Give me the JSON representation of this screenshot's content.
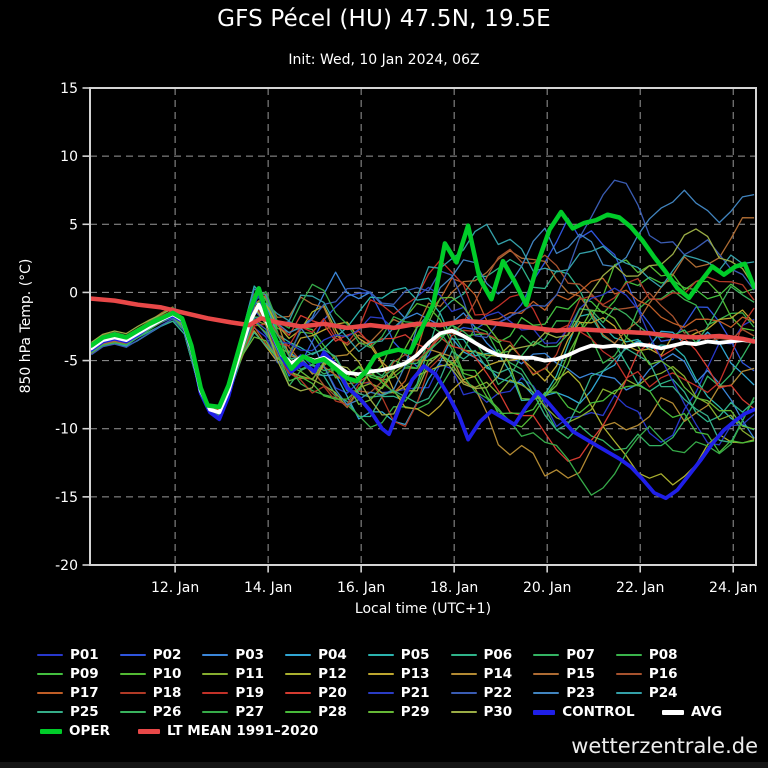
{
  "header": {
    "title": "GFS Pécel (HU) 47.5N, 19.5E",
    "subtitle": "Init: Wed, 10 Jan 2024, 06Z"
  },
  "footer": {
    "watermark": "wetterzentrale.de"
  },
  "colors": {
    "background": "#000000",
    "text": "#ffffff",
    "grid": "#999999",
    "border": "#d4d4d4",
    "oper": "#00cc29",
    "control": "#1f1fe8",
    "avg": "#ffffff",
    "ltmean": "#e84848"
  },
  "chart_data": {
    "type": "line",
    "title": "GFS Pécel (HU) 47.5N, 19.5E",
    "xlabel": "Local time (UTC+1)",
    "ylabel": "850 hPa Temp. (°C)",
    "x_range": [
      10.17,
      24.49
    ],
    "y_range": [
      -20,
      15
    ],
    "grid": "dashed",
    "x_ticks": [
      {
        "day": 12,
        "label": "12. Jan"
      },
      {
        "day": 14,
        "label": "14. Jan"
      },
      {
        "day": 16,
        "label": "16. Jan"
      },
      {
        "day": 18,
        "label": "18. Jan"
      },
      {
        "day": 20,
        "label": "20. Jan"
      },
      {
        "day": 22,
        "label": "22. Jan"
      },
      {
        "day": 24,
        "label": "24. Jan"
      }
    ],
    "y_ticks": [
      {
        "v": 15,
        "label": "15"
      },
      {
        "v": 10,
        "label": "10"
      },
      {
        "v": 5,
        "label": "5"
      },
      {
        "v": 0,
        "label": "0"
      },
      {
        "v": -5,
        "label": "-5"
      },
      {
        "v": -10,
        "label": "-10"
      },
      {
        "v": -15,
        "label": "-15"
      },
      {
        "v": -20,
        "label": "-20"
      }
    ],
    "series": [
      {
        "name": "LTMEAN",
        "label": "LT MEAN 1991–2020",
        "color": "#e84848",
        "width": 4.5,
        "points": [
          [
            10.2,
            -0.45
          ],
          [
            10.7,
            -0.6
          ],
          [
            11.2,
            -0.9
          ],
          [
            11.7,
            -1.1
          ],
          [
            12.2,
            -1.5
          ],
          [
            12.7,
            -1.9
          ],
          [
            13.2,
            -2.2
          ],
          [
            13.6,
            -2.4
          ],
          [
            13.85,
            -1.9
          ],
          [
            14.2,
            -2.2
          ],
          [
            14.7,
            -2.5
          ],
          [
            15.2,
            -2.3
          ],
          [
            15.7,
            -2.6
          ],
          [
            16.2,
            -2.4
          ],
          [
            16.7,
            -2.6
          ],
          [
            17.2,
            -2.3
          ],
          [
            17.7,
            -2.4
          ],
          [
            18.2,
            -2.1
          ],
          [
            18.7,
            -2.2
          ],
          [
            19.2,
            -2.4
          ],
          [
            19.7,
            -2.6
          ],
          [
            20.2,
            -2.8
          ],
          [
            20.7,
            -2.7
          ],
          [
            21.2,
            -2.8
          ],
          [
            21.7,
            -2.9
          ],
          [
            22.2,
            -3.0
          ],
          [
            22.7,
            -3.2
          ],
          [
            23.2,
            -3.3
          ],
          [
            23.7,
            -3.2
          ],
          [
            24.2,
            -3.4
          ],
          [
            24.45,
            -3.6
          ]
        ]
      },
      {
        "name": "CONTROL",
        "label": "CONTROL",
        "color": "#1f1fe8",
        "width": 3.8,
        "points": [
          [
            10.2,
            -4.2
          ],
          [
            10.45,
            -3.6
          ],
          [
            10.7,
            -3.4
          ],
          [
            10.95,
            -3.6
          ],
          [
            11.2,
            -3.1
          ],
          [
            11.45,
            -2.5
          ],
          [
            11.7,
            -2.0
          ],
          [
            11.95,
            -1.7
          ],
          [
            12.15,
            -2.1
          ],
          [
            12.35,
            -4.2
          ],
          [
            12.55,
            -7.4
          ],
          [
            12.75,
            -8.8
          ],
          [
            12.95,
            -9.3
          ],
          [
            13.15,
            -7.6
          ],
          [
            13.4,
            -4.3
          ],
          [
            13.6,
            -1.6
          ],
          [
            13.8,
            0.1
          ],
          [
            14.05,
            -2.8
          ],
          [
            14.3,
            -4.8
          ],
          [
            14.5,
            -5.8
          ],
          [
            14.75,
            -5.2
          ],
          [
            15.0,
            -5.8
          ],
          [
            15.2,
            -4.4
          ],
          [
            15.45,
            -5.3
          ],
          [
            15.7,
            -7.0
          ],
          [
            15.95,
            -7.7
          ],
          [
            16.2,
            -8.7
          ],
          [
            16.45,
            -10.0
          ],
          [
            16.6,
            -10.4
          ],
          [
            16.85,
            -8.2
          ],
          [
            17.1,
            -6.4
          ],
          [
            17.35,
            -5.4
          ],
          [
            17.6,
            -6.0
          ],
          [
            17.85,
            -7.4
          ],
          [
            18.1,
            -9.0
          ],
          [
            18.3,
            -10.8
          ],
          [
            18.55,
            -9.5
          ],
          [
            18.8,
            -8.7
          ],
          [
            19.05,
            -9.2
          ],
          [
            19.3,
            -9.7
          ],
          [
            19.55,
            -8.4
          ],
          [
            19.8,
            -7.3
          ],
          [
            20.05,
            -8.2
          ],
          [
            20.3,
            -9.2
          ],
          [
            20.55,
            -10.2
          ],
          [
            20.8,
            -10.7
          ],
          [
            21.05,
            -11.2
          ],
          [
            21.3,
            -11.7
          ],
          [
            21.55,
            -12.2
          ],
          [
            21.8,
            -12.8
          ],
          [
            22.05,
            -13.7
          ],
          [
            22.3,
            -14.7
          ],
          [
            22.55,
            -15.1
          ],
          [
            22.8,
            -14.5
          ],
          [
            23.05,
            -13.4
          ],
          [
            23.3,
            -12.3
          ],
          [
            23.55,
            -11.1
          ],
          [
            23.8,
            -10.1
          ],
          [
            24.05,
            -9.4
          ],
          [
            24.25,
            -8.9
          ],
          [
            24.45,
            -8.6
          ]
        ]
      },
      {
        "name": "AVG",
        "label": "AVG",
        "color": "#ffffff",
        "width": 3.8,
        "points": [
          [
            10.2,
            -4.1
          ],
          [
            10.45,
            -3.5
          ],
          [
            10.7,
            -3.3
          ],
          [
            10.95,
            -3.5
          ],
          [
            11.2,
            -3.0
          ],
          [
            11.45,
            -2.5
          ],
          [
            11.7,
            -2.0
          ],
          [
            11.95,
            -1.6
          ],
          [
            12.15,
            -2.0
          ],
          [
            12.35,
            -4.1
          ],
          [
            12.55,
            -7.2
          ],
          [
            12.75,
            -8.6
          ],
          [
            12.95,
            -8.8
          ],
          [
            13.15,
            -7.2
          ],
          [
            13.4,
            -4.4
          ],
          [
            13.6,
            -2.2
          ],
          [
            13.8,
            -0.9
          ],
          [
            14.05,
            -2.7
          ],
          [
            14.3,
            -4.6
          ],
          [
            14.5,
            -5.2
          ],
          [
            14.75,
            -4.7
          ],
          [
            15.0,
            -5.0
          ],
          [
            15.2,
            -4.8
          ],
          [
            15.45,
            -5.3
          ],
          [
            15.7,
            -5.9
          ],
          [
            15.95,
            -6.0
          ],
          [
            16.2,
            -5.8
          ],
          [
            16.45,
            -5.7
          ],
          [
            16.7,
            -5.5
          ],
          [
            16.95,
            -5.2
          ],
          [
            17.2,
            -4.6
          ],
          [
            17.45,
            -3.7
          ],
          [
            17.7,
            -3.0
          ],
          [
            17.95,
            -2.8
          ],
          [
            18.2,
            -3.2
          ],
          [
            18.45,
            -3.7
          ],
          [
            18.7,
            -4.2
          ],
          [
            18.95,
            -4.6
          ],
          [
            19.2,
            -4.7
          ],
          [
            19.45,
            -4.8
          ],
          [
            19.7,
            -4.8
          ],
          [
            19.95,
            -5.0
          ],
          [
            20.2,
            -4.9
          ],
          [
            20.45,
            -4.6
          ],
          [
            20.7,
            -4.2
          ],
          [
            20.95,
            -3.9
          ],
          [
            21.2,
            -4.0
          ],
          [
            21.45,
            -3.9
          ],
          [
            21.7,
            -4.0
          ],
          [
            21.95,
            -3.8
          ],
          [
            22.2,
            -3.9
          ],
          [
            22.45,
            -4.1
          ],
          [
            22.7,
            -3.9
          ],
          [
            22.95,
            -3.7
          ],
          [
            23.2,
            -3.8
          ],
          [
            23.45,
            -3.6
          ],
          [
            23.7,
            -3.7
          ],
          [
            23.95,
            -3.6
          ],
          [
            24.2,
            -3.5
          ],
          [
            24.45,
            -3.6
          ]
        ]
      },
      {
        "name": "OPER",
        "label": "OPER",
        "color": "#00cc29",
        "width": 4.5,
        "points": [
          [
            10.2,
            -3.9
          ],
          [
            10.45,
            -3.3
          ],
          [
            10.7,
            -3.1
          ],
          [
            10.95,
            -3.3
          ],
          [
            11.2,
            -2.8
          ],
          [
            11.45,
            -2.3
          ],
          [
            11.7,
            -1.9
          ],
          [
            11.95,
            -1.5
          ],
          [
            12.15,
            -1.9
          ],
          [
            12.35,
            -3.9
          ],
          [
            12.55,
            -7.0
          ],
          [
            12.7,
            -8.3
          ],
          [
            12.95,
            -8.4
          ],
          [
            13.15,
            -6.8
          ],
          [
            13.4,
            -3.8
          ],
          [
            13.6,
            -1.4
          ],
          [
            13.8,
            0.3
          ],
          [
            14.05,
            -2.6
          ],
          [
            14.3,
            -4.5
          ],
          [
            14.5,
            -5.6
          ],
          [
            14.75,
            -4.7
          ],
          [
            15.0,
            -5.1
          ],
          [
            15.2,
            -4.9
          ],
          [
            15.45,
            -5.6
          ],
          [
            15.7,
            -6.3
          ],
          [
            15.9,
            -6.5
          ],
          [
            16.1,
            -5.8
          ],
          [
            16.3,
            -4.7
          ],
          [
            16.55,
            -4.4
          ],
          [
            16.8,
            -4.2
          ],
          [
            17.05,
            -4.4
          ],
          [
            17.3,
            -2.7
          ],
          [
            17.55,
            -0.9
          ],
          [
            17.8,
            3.6
          ],
          [
            18.05,
            2.2
          ],
          [
            18.3,
            4.9
          ],
          [
            18.55,
            1.0
          ],
          [
            18.8,
            -0.5
          ],
          [
            19.05,
            2.3
          ],
          [
            19.3,
            0.8
          ],
          [
            19.55,
            -0.9
          ],
          [
            19.8,
            2.2
          ],
          [
            20.05,
            4.6
          ],
          [
            20.3,
            5.9
          ],
          [
            20.55,
            4.7
          ],
          [
            20.8,
            5.1
          ],
          [
            21.05,
            5.3
          ],
          [
            21.3,
            5.7
          ],
          [
            21.55,
            5.5
          ],
          [
            21.8,
            4.8
          ],
          [
            22.05,
            3.8
          ],
          [
            22.3,
            2.6
          ],
          [
            22.55,
            1.5
          ],
          [
            22.8,
            0.3
          ],
          [
            23.05,
            -0.4
          ],
          [
            23.3,
            0.8
          ],
          [
            23.55,
            1.9
          ],
          [
            23.8,
            1.3
          ],
          [
            24.05,
            1.9
          ],
          [
            24.25,
            2.1
          ],
          [
            24.45,
            0.4
          ]
        ]
      }
    ],
    "ensemble": {
      "count": 30,
      "labels": [
        "P01",
        "P02",
        "P03",
        "P04",
        "P05",
        "P06",
        "P07",
        "P08",
        "P09",
        "P10",
        "P11",
        "P12",
        "P13",
        "P14",
        "P15",
        "P16",
        "P17",
        "P18",
        "P19",
        "P20",
        "P21",
        "P22",
        "P23",
        "P24",
        "P25",
        "P26",
        "P27",
        "P28",
        "P29",
        "P30"
      ],
      "colors": [
        "#2838cc",
        "#2f55dd",
        "#3b86d9",
        "#31a6d3",
        "#2bb3ae",
        "#2fb389",
        "#34b363",
        "#3ab34b",
        "#43bf3f",
        "#52b933",
        "#86ad2f",
        "#aab02f",
        "#bda62f",
        "#b38a33",
        "#ad6b33",
        "#a6522e",
        "#bf5d26",
        "#b03a26",
        "#c13128",
        "#d43b30",
        "#2a3cc4",
        "#3a5cb3",
        "#4184bf",
        "#34a0a8",
        "#35ad88",
        "#39b35e",
        "#36ab49",
        "#48ba3a",
        "#66b836",
        "#9aac45"
      ],
      "seed": 20240110,
      "step_days": 0.25,
      "envelope": [
        [
          10.2,
          -4.6,
          -3.2
        ],
        [
          11.0,
          -4.0,
          -2.6
        ],
        [
          11.5,
          -3.2,
          -1.8
        ],
        [
          12.0,
          -2.4,
          -0.9
        ],
        [
          12.5,
          -7.6,
          -5.2
        ],
        [
          13.0,
          -9.6,
          -6.8
        ],
        [
          13.5,
          -6.5,
          -1.0
        ],
        [
          13.8,
          -3.5,
          2.5
        ],
        [
          14.1,
          -4.5,
          1.5
        ],
        [
          14.5,
          -7.2,
          -1.0
        ],
        [
          15.0,
          -7.5,
          1.0
        ],
        [
          15.3,
          -7.8,
          3.5
        ],
        [
          15.6,
          -8.2,
          0.5
        ],
        [
          16.0,
          -9.5,
          0.5
        ],
        [
          16.5,
          -10.6,
          -0.5
        ],
        [
          17.0,
          -10.0,
          7.0
        ],
        [
          17.35,
          -9.5,
          8.0
        ],
        [
          17.6,
          -8.5,
          5.5
        ],
        [
          17.9,
          -9.0,
          7.0
        ],
        [
          18.2,
          -9.8,
          7.0
        ],
        [
          18.6,
          -10.6,
          5.5
        ],
        [
          19.0,
          -11.5,
          4.2
        ],
        [
          19.5,
          -12.6,
          3.6
        ],
        [
          20.0,
          -13.6,
          5.0
        ],
        [
          20.5,
          -14.6,
          5.6
        ],
        [
          21.0,
          -15.0,
          6.2
        ],
        [
          21.45,
          -15.0,
          9.3
        ],
        [
          22.0,
          -15.5,
          7.0
        ],
        [
          22.5,
          -15.5,
          8.0
        ],
        [
          23.0,
          -13.6,
          7.5
        ],
        [
          23.5,
          -12.5,
          6.0
        ],
        [
          24.0,
          -11.2,
          7.0
        ],
        [
          24.45,
          -11.0,
          7.3
        ]
      ]
    }
  }
}
